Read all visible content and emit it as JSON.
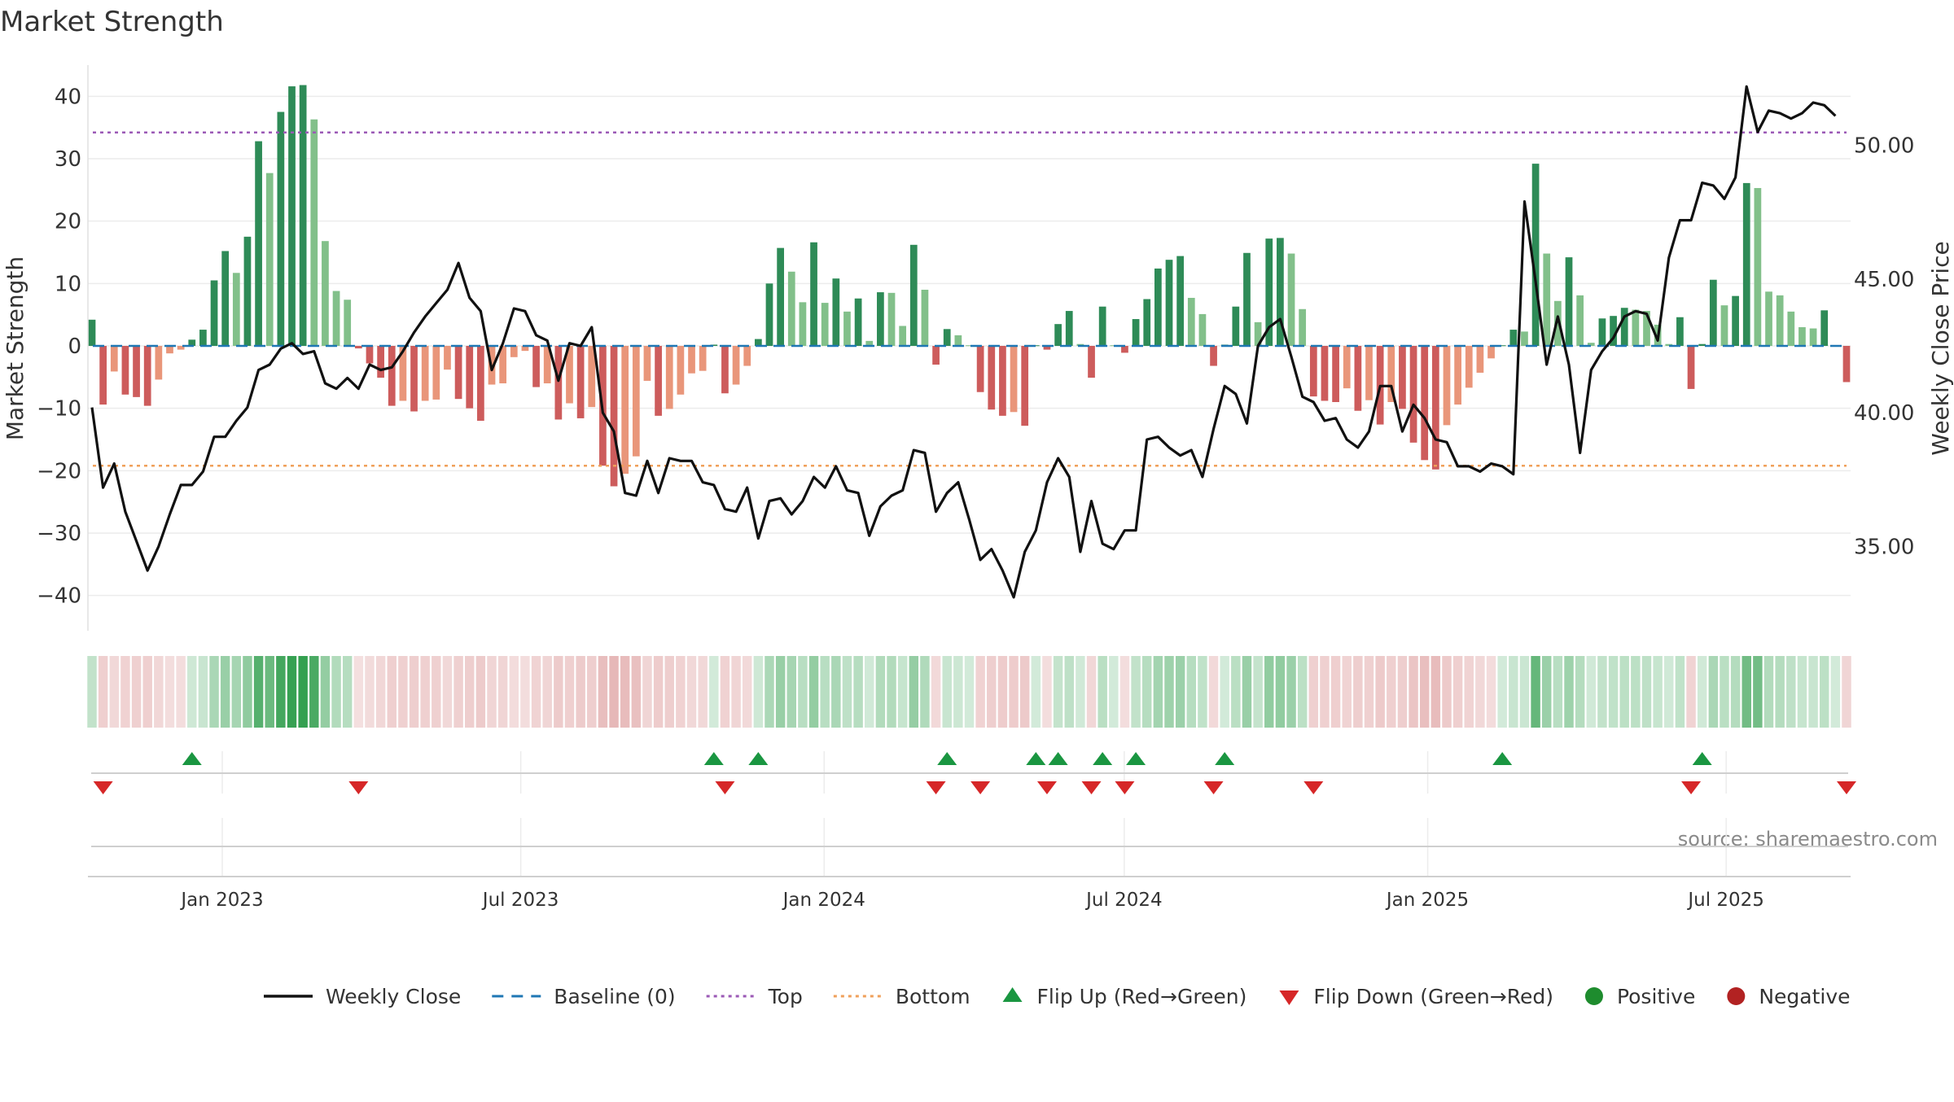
{
  "chart_data": {
    "type": "bar",
    "title": "Market Strength",
    "ylabel_left": "Market Strength",
    "ylabel_right": "Weekly Close Price",
    "source": "source: sharemaestro.com",
    "y_left_range": [
      -45,
      45
    ],
    "y_left_ticks": [
      "40",
      "30",
      "20",
      "10",
      "0",
      "−10",
      "−20",
      "−30",
      "−40"
    ],
    "y_right_range": [
      32,
      53
    ],
    "y_right_ticks": [
      "50.00",
      "45.00",
      "40.00",
      "35.00"
    ],
    "x_range": [
      "2022-10-14",
      "2025-09-12"
    ],
    "x_ticks": [
      "Jan 2023",
      "Jul 2023",
      "Jan 2024",
      "Jul 2024",
      "Jan 2025",
      "Jul 2025"
    ],
    "top_level": 34.2,
    "bottom_level": -19.2,
    "baseline": 0,
    "legend": [
      {
        "label": "Weekly Close",
        "kind": "solid-line",
        "color": "#111111"
      },
      {
        "label": "Baseline (0)",
        "kind": "dash-line",
        "color": "#1f77b4"
      },
      {
        "label": "Top",
        "kind": "dot-line",
        "color": "#9b59b6"
      },
      {
        "label": "Bottom",
        "kind": "dot-line",
        "color": "#f0a05a"
      },
      {
        "label": "Flip Up (Red→Green)",
        "kind": "triangle-up",
        "color": "#1a9641"
      },
      {
        "label": "Flip Down (Green→Red)",
        "kind": "triangle-down",
        "color": "#d62728"
      },
      {
        "label": "Positive",
        "kind": "circle",
        "color": "#1e8c2e"
      },
      {
        "label": "Negative",
        "kind": "circle",
        "color": "#b22222"
      }
    ],
    "strength": [
      4.2,
      -9.4,
      -4.1,
      -7.8,
      -8.2,
      -9.6,
      -5.4,
      -1.2,
      -0.6,
      1.0,
      2.6,
      10.5,
      15.2,
      11.7,
      17.5,
      32.8,
      27.7,
      37.5,
      41.6,
      41.8,
      36.3,
      16.8,
      8.8,
      7.4,
      -0.4,
      -2.8,
      -5.1,
      -9.6,
      -8.8,
      -10.5,
      -8.8,
      -8.6,
      -3.8,
      -8.5,
      -10.0,
      -12.0,
      -6.2,
      -6.0,
      -1.8,
      -0.8,
      -6.6,
      -6.0,
      -11.8,
      -9.2,
      -11.6,
      -9.8,
      -19.2,
      -22.5,
      -20.5,
      -17.7,
      -5.6,
      -11.2,
      -10.1,
      -7.8,
      -4.4,
      -4.0,
      0.2,
      -7.6,
      -6.2,
      -3.2,
      1.1,
      10.0,
      15.7,
      11.9,
      7.0,
      16.6,
      6.9,
      10.8,
      5.5,
      7.6,
      0.8,
      8.6,
      8.5,
      3.2,
      16.2,
      9.0,
      -3.0,
      2.7,
      1.7,
      0.1,
      -7.4,
      -10.2,
      -11.2,
      -10.6,
      -12.8,
      0.1,
      -0.6,
      3.5,
      5.6,
      0.3,
      -5.1,
      6.3,
      0.1,
      -1.1,
      4.3,
      7.5,
      12.4,
      13.8,
      14.4,
      7.7,
      5.1,
      -3.2,
      0.2,
      6.3,
      14.9,
      3.8,
      17.2,
      17.3,
      14.8,
      5.9,
      -8.1,
      -8.8,
      -9.0,
      -6.8,
      -10.4,
      -8.7,
      -12.6,
      -9.0,
      -10.1,
      -15.5,
      -18.3,
      -19.8,
      -12.7,
      -9.4,
      -6.7,
      -4.3,
      -2.0,
      0.1,
      2.6,
      2.3,
      29.2,
      14.8,
      7.2,
      14.2,
      8.1,
      0.5,
      4.4,
      4.8,
      6.1,
      5.8,
      5.6,
      3.4,
      0.3,
      4.6,
      -6.9,
      0.3,
      10.6,
      6.5,
      8.0,
      26.1,
      25.3,
      8.7,
      8.1,
      5.5,
      3.0,
      2.8,
      5.7,
      0.1,
      -5.8
    ],
    "close": [
      40.2,
      37.2,
      38.1,
      36.3,
      35.2,
      34.1,
      35.0,
      36.2,
      37.3,
      37.3,
      37.8,
      39.1,
      39.1,
      39.7,
      40.2,
      41.6,
      41.8,
      42.4,
      42.6,
      42.2,
      42.3,
      41.1,
      40.9,
      41.3,
      40.9,
      41.8,
      41.6,
      41.7,
      42.3,
      43.0,
      43.6,
      44.1,
      44.6,
      45.6,
      44.3,
      43.8,
      41.6,
      42.6,
      43.9,
      43.8,
      42.9,
      42.7,
      41.2,
      42.6,
      42.5,
      43.2,
      40.0,
      39.3,
      37.0,
      36.9,
      38.2,
      37.0,
      38.3,
      38.2,
      38.2,
      37.4,
      37.3,
      36.4,
      36.3,
      37.2,
      35.3,
      36.7,
      36.8,
      36.2,
      36.7,
      37.6,
      37.2,
      38.0,
      37.1,
      37.0,
      35.4,
      36.5,
      36.9,
      37.1,
      38.6,
      38.5,
      36.3,
      37.0,
      37.4,
      36.0,
      34.5,
      34.9,
      34.1,
      33.1,
      34.8,
      35.6,
      37.4,
      38.3,
      37.6,
      34.8,
      36.7,
      35.1,
      34.9,
      35.6,
      35.6,
      39.0,
      39.1,
      38.7,
      38.4,
      38.6,
      37.6,
      39.4,
      41.0,
      40.7,
      39.6,
      42.5,
      43.2,
      43.5,
      42.1,
      40.6,
      40.4,
      39.7,
      39.8,
      39.0,
      38.7,
      39.3,
      41.0,
      41.0,
      39.3,
      40.3,
      39.8,
      39.0,
      38.9,
      38.0,
      38.0,
      37.8,
      38.1,
      38.0,
      37.7,
      47.9,
      44.9,
      41.8,
      43.6,
      41.8,
      38.5,
      41.6,
      42.3,
      42.8,
      43.6,
      43.8,
      43.7,
      42.7,
      45.8,
      47.2,
      47.2,
      48.6,
      48.5,
      48.0,
      48.8,
      52.2,
      50.5,
      51.3,
      51.2,
      51.0,
      51.2,
      51.6,
      51.5,
      51.1
    ]
  }
}
